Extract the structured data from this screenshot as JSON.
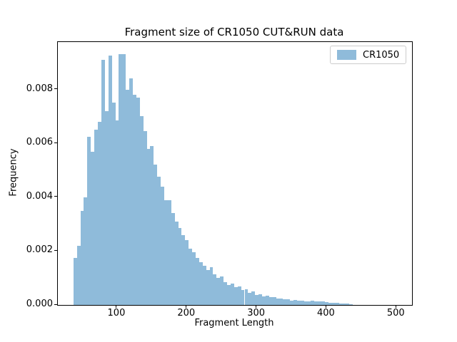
{
  "chart_data": {
    "type": "bar",
    "subtype": "histogram",
    "title": "Fragment size of CR1050 CUT&RUN data",
    "xlabel": "Fragment Length",
    "ylabel": "Frequency",
    "grid": false,
    "bar_color": "#8FBBDA",
    "axis_color": "#000000",
    "legend": {
      "position": "upper right",
      "entries": [
        {
          "label": "CR1050",
          "color": "#8FBBDA"
        }
      ]
    },
    "xlim": [
      15.2,
      522.2
    ],
    "ylim": [
      0,
      0.00976
    ],
    "x_ticks": [
      100,
      200,
      300,
      400,
      500
    ],
    "x_tick_labels": [
      "100",
      "200",
      "300",
      "400",
      "500"
    ],
    "y_ticks": [
      0,
      0.002,
      0.004,
      0.006,
      0.008
    ],
    "y_tick_labels": [
      "0.000",
      "0.002",
      "0.004",
      "0.006",
      "0.008"
    ],
    "bins": {
      "start": 37.5,
      "width": 5,
      "count": 80
    },
    "values": [
      0.00175,
      0.0022,
      0.0035,
      0.004,
      0.00625,
      0.0057,
      0.0065,
      0.0068,
      0.0091,
      0.0072,
      0.00925,
      0.0075,
      0.00685,
      0.0093,
      0.0093,
      0.008,
      0.0084,
      0.0078,
      0.0077,
      0.007,
      0.00645,
      0.0058,
      0.0059,
      0.0052,
      0.00475,
      0.0044,
      0.0039,
      0.0039,
      0.0034,
      0.0031,
      0.00285,
      0.0026,
      0.0024,
      0.0021,
      0.00195,
      0.00175,
      0.0016,
      0.00145,
      0.0013,
      0.0014,
      0.00115,
      0.001,
      0.00105,
      0.00085,
      0.00075,
      0.0008,
      0.00065,
      0.0007,
      0.00055,
      0.00058,
      0.00045,
      0.0005,
      0.00038,
      0.0004,
      0.00032,
      0.00035,
      0.00028,
      0.0003,
      0.00024,
      0.00025,
      0.0002,
      0.00022,
      0.00017,
      0.00018,
      0.00015,
      0.00016,
      0.00013,
      0.00013,
      0.00017,
      0.00014,
      0.00012,
      0.00013,
      0.0001,
      8e-05,
      9e-05,
      7e-05,
      6e-05,
      5e-05,
      5e-05,
      4e-05
    ]
  }
}
